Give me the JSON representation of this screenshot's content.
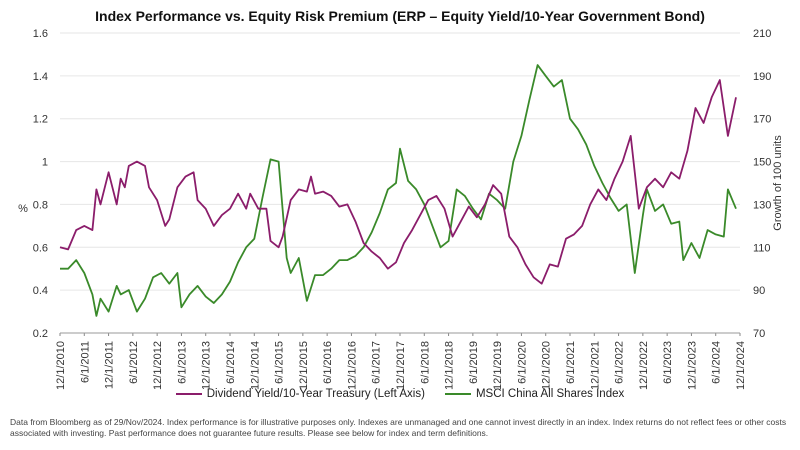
{
  "chart_data": {
    "type": "line",
    "title": "Index Performance vs. Equity Risk Premium (ERP – Equity Yield/10-Year Government Bond)",
    "ylabel_left": "%",
    "ylabel_right": "Growth of 100 units",
    "ylim_left": [
      0.2,
      1.6
    ],
    "ylim_right": [
      70,
      210
    ],
    "yticks_left": [
      "0.2",
      "0.4",
      "0.6",
      "0.8",
      "1",
      "1.2",
      "1.4",
      "1.6"
    ],
    "yticks_right": [
      "70",
      "90",
      "110",
      "130",
      "150",
      "170",
      "190",
      "210"
    ],
    "xticks": [
      "12/1/2010",
      "6/1/2011",
      "12/1/2011",
      "6/1/2012",
      "12/1/2012",
      "6/1/2013",
      "12/1/2013",
      "6/1/2014",
      "12/1/2014",
      "6/1/2015",
      "12/1/2015",
      "6/1/2016",
      "12/1/2016",
      "6/1/2017",
      "12/1/2017",
      "6/1/2018",
      "12/1/2018",
      "6/1/2019",
      "12/1/2019",
      "6/1/2020",
      "12/1/2020",
      "6/1/2021",
      "12/1/2021",
      "6/1/2022",
      "12/1/2022",
      "6/1/2023",
      "12/1/2023",
      "6/1/2024",
      "12/1/2024"
    ],
    "x_range": [
      "2010-12-01",
      "2024-12-01"
    ],
    "series": [
      {
        "name": "Dividend Yield/10-Year Treasury (Left Axis)",
        "axis": "left",
        "color": "#8b1d6b",
        "points": [
          [
            "2010-12",
            0.6
          ],
          [
            "2011-02",
            0.59
          ],
          [
            "2011-04",
            0.68
          ],
          [
            "2011-06",
            0.7
          ],
          [
            "2011-08",
            0.68
          ],
          [
            "2011-09",
            0.87
          ],
          [
            "2011-10",
            0.8
          ],
          [
            "2011-12",
            0.95
          ],
          [
            "2012-02",
            0.8
          ],
          [
            "2012-03",
            0.92
          ],
          [
            "2012-04",
            0.88
          ],
          [
            "2012-05",
            0.98
          ],
          [
            "2012-07",
            1.0
          ],
          [
            "2012-09",
            0.98
          ],
          [
            "2012-10",
            0.88
          ],
          [
            "2012-12",
            0.82
          ],
          [
            "2013-02",
            0.7
          ],
          [
            "2013-03",
            0.73
          ],
          [
            "2013-05",
            0.88
          ],
          [
            "2013-07",
            0.93
          ],
          [
            "2013-09",
            0.95
          ],
          [
            "2013-10",
            0.82
          ],
          [
            "2013-12",
            0.78
          ],
          [
            "2014-02",
            0.7
          ],
          [
            "2014-04",
            0.75
          ],
          [
            "2014-06",
            0.78
          ],
          [
            "2014-08",
            0.85
          ],
          [
            "2014-10",
            0.78
          ],
          [
            "2014-11",
            0.85
          ],
          [
            "2015-01",
            0.78
          ],
          [
            "2015-03",
            0.78
          ],
          [
            "2015-04",
            0.63
          ],
          [
            "2015-06",
            0.6
          ],
          [
            "2015-07",
            0.65
          ],
          [
            "2015-09",
            0.82
          ],
          [
            "2015-11",
            0.87
          ],
          [
            "2016-01",
            0.86
          ],
          [
            "2016-02",
            0.93
          ],
          [
            "2016-03",
            0.85
          ],
          [
            "2016-05",
            0.86
          ],
          [
            "2016-07",
            0.84
          ],
          [
            "2016-09",
            0.79
          ],
          [
            "2016-11",
            0.8
          ],
          [
            "2017-01",
            0.72
          ],
          [
            "2017-03",
            0.62
          ],
          [
            "2017-05",
            0.58
          ],
          [
            "2017-07",
            0.55
          ],
          [
            "2017-09",
            0.5
          ],
          [
            "2017-11",
            0.53
          ],
          [
            "2018-01",
            0.62
          ],
          [
            "2018-03",
            0.68
          ],
          [
            "2018-05",
            0.75
          ],
          [
            "2018-07",
            0.82
          ],
          [
            "2018-09",
            0.84
          ],
          [
            "2018-11",
            0.78
          ],
          [
            "2019-01",
            0.65
          ],
          [
            "2019-03",
            0.72
          ],
          [
            "2019-05",
            0.79
          ],
          [
            "2019-07",
            0.74
          ],
          [
            "2019-09",
            0.8
          ],
          [
            "2019-11",
            0.89
          ],
          [
            "2020-01",
            0.85
          ],
          [
            "2020-03",
            0.65
          ],
          [
            "2020-05",
            0.6
          ],
          [
            "2020-07",
            0.52
          ],
          [
            "2020-09",
            0.46
          ],
          [
            "2020-11",
            0.43
          ],
          [
            "2021-01",
            0.52
          ],
          [
            "2021-03",
            0.51
          ],
          [
            "2021-05",
            0.64
          ],
          [
            "2021-07",
            0.66
          ],
          [
            "2021-09",
            0.7
          ],
          [
            "2021-11",
            0.8
          ],
          [
            "2022-01",
            0.87
          ],
          [
            "2022-03",
            0.82
          ],
          [
            "2022-05",
            0.92
          ],
          [
            "2022-07",
            1.0
          ],
          [
            "2022-09",
            1.12
          ],
          [
            "2022-11",
            0.78
          ],
          [
            "2023-01",
            0.88
          ],
          [
            "2023-03",
            0.92
          ],
          [
            "2023-05",
            0.88
          ],
          [
            "2023-07",
            0.95
          ],
          [
            "2023-09",
            0.92
          ],
          [
            "2023-11",
            1.05
          ],
          [
            "2024-01",
            1.25
          ],
          [
            "2024-03",
            1.18
          ],
          [
            "2024-05",
            1.3
          ],
          [
            "2024-07",
            1.38
          ],
          [
            "2024-09",
            1.12
          ],
          [
            "2024-11",
            1.3
          ]
        ]
      },
      {
        "name": "MSCI China All Shares Index",
        "axis": "right",
        "color": "#3a8a2a",
        "points": [
          [
            "2010-12",
            100
          ],
          [
            "2011-02",
            100
          ],
          [
            "2011-04",
            104
          ],
          [
            "2011-06",
            98
          ],
          [
            "2011-08",
            88
          ],
          [
            "2011-09",
            78
          ],
          [
            "2011-10",
            86
          ],
          [
            "2011-12",
            80
          ],
          [
            "2012-02",
            92
          ],
          [
            "2012-03",
            88
          ],
          [
            "2012-05",
            90
          ],
          [
            "2012-07",
            80
          ],
          [
            "2012-09",
            86
          ],
          [
            "2012-11",
            96
          ],
          [
            "2013-01",
            98
          ],
          [
            "2013-03",
            93
          ],
          [
            "2013-05",
            98
          ],
          [
            "2013-06",
            82
          ],
          [
            "2013-08",
            88
          ],
          [
            "2013-10",
            92
          ],
          [
            "2013-12",
            87
          ],
          [
            "2014-02",
            84
          ],
          [
            "2014-04",
            88
          ],
          [
            "2014-06",
            94
          ],
          [
            "2014-08",
            103
          ],
          [
            "2014-10",
            110
          ],
          [
            "2014-12",
            114
          ],
          [
            "2015-02",
            133
          ],
          [
            "2015-04",
            151
          ],
          [
            "2015-06",
            150
          ],
          [
            "2015-08",
            105
          ],
          [
            "2015-09",
            98
          ],
          [
            "2015-11",
            105
          ],
          [
            "2016-01",
            85
          ],
          [
            "2016-03",
            97
          ],
          [
            "2016-05",
            97
          ],
          [
            "2016-07",
            100
          ],
          [
            "2016-09",
            104
          ],
          [
            "2016-11",
            104
          ],
          [
            "2017-01",
            106
          ],
          [
            "2017-03",
            110
          ],
          [
            "2017-05",
            117
          ],
          [
            "2017-07",
            126
          ],
          [
            "2017-09",
            137
          ],
          [
            "2017-11",
            140
          ],
          [
            "2017-12",
            156
          ],
          [
            "2018-02",
            141
          ],
          [
            "2018-04",
            137
          ],
          [
            "2018-06",
            130
          ],
          [
            "2018-08",
            120
          ],
          [
            "2018-10",
            110
          ],
          [
            "2018-12",
            113
          ],
          [
            "2019-02",
            137
          ],
          [
            "2019-04",
            134
          ],
          [
            "2019-06",
            128
          ],
          [
            "2019-08",
            123
          ],
          [
            "2019-10",
            135
          ],
          [
            "2019-12",
            132
          ],
          [
            "2020-02",
            128
          ],
          [
            "2020-04",
            150
          ],
          [
            "2020-06",
            162
          ],
          [
            "2020-08",
            179
          ],
          [
            "2020-10",
            195
          ],
          [
            "2020-12",
            190
          ],
          [
            "2021-02",
            185
          ],
          [
            "2021-04",
            188
          ],
          [
            "2021-06",
            170
          ],
          [
            "2021-08",
            165
          ],
          [
            "2021-10",
            158
          ],
          [
            "2021-12",
            148
          ],
          [
            "2022-02",
            140
          ],
          [
            "2022-04",
            133
          ],
          [
            "2022-06",
            127
          ],
          [
            "2022-08",
            130
          ],
          [
            "2022-10",
            98
          ],
          [
            "2022-12",
            125
          ],
          [
            "2023-01",
            137
          ],
          [
            "2023-03",
            127
          ],
          [
            "2023-05",
            130
          ],
          [
            "2023-07",
            121
          ],
          [
            "2023-09",
            122
          ],
          [
            "2023-10",
            104
          ],
          [
            "2023-12",
            112
          ],
          [
            "2024-02",
            105
          ],
          [
            "2024-04",
            118
          ],
          [
            "2024-06",
            116
          ],
          [
            "2024-08",
            115
          ],
          [
            "2024-09",
            137
          ],
          [
            "2024-11",
            128
          ]
        ]
      }
    ]
  },
  "footnote": "Data from Bloomberg as of 29/Nov/2024. Index performance is for illustrative purposes only. Indexes are unmanaged and one cannot invest directly in an index. Index returns do not reflect fees or other costs associated with investing. Past performance does not guarantee future results. Please see below for index and term definitions."
}
